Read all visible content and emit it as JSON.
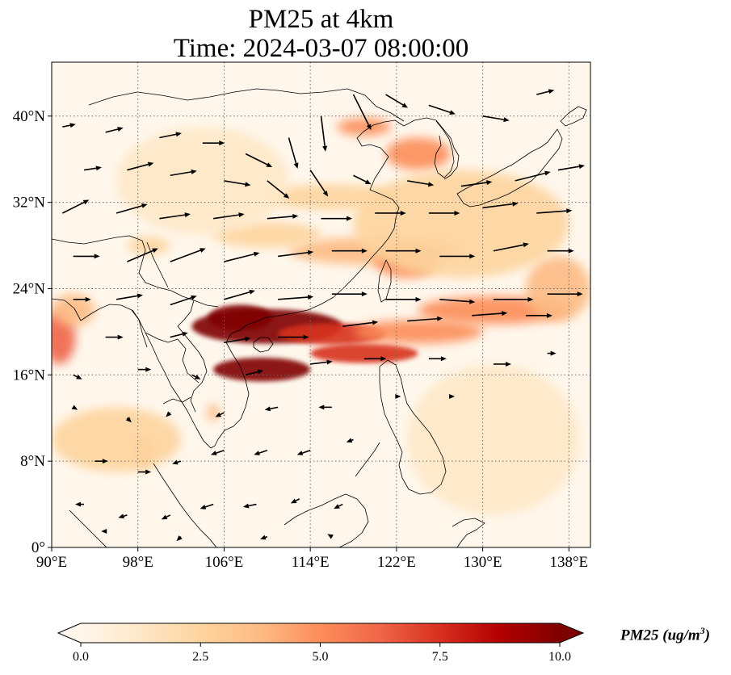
{
  "title": {
    "line1": "PM25 at 4km",
    "line2": "Time: 2024-03-07 08:00:00"
  },
  "map": {
    "extent": {
      "lon": [
        90,
        140
      ],
      "lat": [
        0,
        45
      ]
    },
    "lat_ticks": [
      {
        "value": 0,
        "label": "0°"
      },
      {
        "value": 8,
        "label": "8°N"
      },
      {
        "value": 16,
        "label": "16°N"
      },
      {
        "value": 24,
        "label": "24°N"
      },
      {
        "value": 32,
        "label": "32°N"
      },
      {
        "value": 40,
        "label": "40°N"
      }
    ],
    "lon_ticks": [
      {
        "value": 90,
        "label": "90°E"
      },
      {
        "value": 98,
        "label": "98°E"
      },
      {
        "value": 106,
        "label": "106°E"
      },
      {
        "value": 114,
        "label": "114°E"
      },
      {
        "value": 122,
        "label": "122°E"
      },
      {
        "value": 130,
        "label": "130°E"
      },
      {
        "value": 138,
        "label": "138°E"
      }
    ],
    "gridlines": true,
    "colormap": "OrRd",
    "field_blobs": [
      {
        "lon": 110,
        "lat": 20.5,
        "rlon": 7,
        "rlat": 1.6,
        "level": 10
      },
      {
        "lon": 107.5,
        "lat": 21.3,
        "rlon": 3,
        "rlat": 1.2,
        "level": 10
      },
      {
        "lon": 109.5,
        "lat": 16.5,
        "rlon": 4.5,
        "rlat": 1.1,
        "level": 9.5
      },
      {
        "lon": 116,
        "lat": 19.8,
        "rlon": 5,
        "rlat": 1,
        "level": 7.5
      },
      {
        "lon": 119,
        "lat": 18,
        "rlon": 5,
        "rlat": 0.9,
        "level": 7
      },
      {
        "lon": 124,
        "lat": 20,
        "rlon": 6,
        "rlat": 1.1,
        "level": 5.5
      },
      {
        "lon": 131,
        "lat": 22,
        "rlon": 7,
        "rlat": 1.3,
        "level": 4.5
      },
      {
        "lon": 90.7,
        "lat": 19.5,
        "rlon": 1.5,
        "rlat": 2.5,
        "level": 6
      },
      {
        "lon": 92,
        "lat": 22,
        "rlon": 2,
        "rlat": 1.5,
        "level": 4
      },
      {
        "lon": 120,
        "lat": 27.5,
        "rlon": 8,
        "rlat": 1.3,
        "level": 4
      },
      {
        "lon": 110,
        "lat": 29,
        "rlon": 5,
        "rlat": 1.2,
        "level": 3
      },
      {
        "lon": 123,
        "lat": 26.5,
        "rlon": 3,
        "rlat": 1.5,
        "level": 4.5
      },
      {
        "lon": 116,
        "lat": 32.5,
        "rlon": 6,
        "rlat": 1.2,
        "level": 3
      },
      {
        "lon": 124,
        "lat": 36.5,
        "rlon": 3,
        "rlat": 1.5,
        "level": 5
      },
      {
        "lon": 119,
        "lat": 39,
        "rlon": 2.5,
        "rlat": 0.8,
        "level": 4.5
      },
      {
        "lon": 99,
        "lat": 28,
        "rlon": 2,
        "rlat": 0.8,
        "level": 3
      },
      {
        "lon": 98.5,
        "lat": 8.8,
        "rlon": 0.8,
        "rlat": 1.5,
        "level": 4
      },
      {
        "lon": 105,
        "lat": 12.5,
        "rlon": 0.6,
        "rlat": 0.8,
        "level": 3.5
      },
      {
        "lon": 96,
        "lat": 10,
        "rlon": 6,
        "rlat": 3,
        "level": 2
      },
      {
        "lon": 131,
        "lat": 10,
        "rlon": 8,
        "rlat": 7,
        "level": 1.8
      },
      {
        "lon": 137,
        "lat": 24,
        "rlon": 3,
        "rlat": 3,
        "level": 3.5
      },
      {
        "lon": 104,
        "lat": 34,
        "rlon": 8,
        "rlat": 5,
        "level": 1.2
      },
      {
        "lon": 128,
        "lat": 30,
        "rlon": 10,
        "rlat": 5,
        "level": 2.2
      }
    ],
    "wind_arrows": [
      {
        "lon": 91,
        "lat": 39,
        "u": 1.5,
        "v": 0.3
      },
      {
        "lon": 95,
        "lat": 38.5,
        "u": 2,
        "v": 0.5
      },
      {
        "lon": 100,
        "lat": 38,
        "u": 2.5,
        "v": 0.5
      },
      {
        "lon": 104,
        "lat": 37.5,
        "u": 2.5,
        "v": 0
      },
      {
        "lon": 108,
        "lat": 36.5,
        "u": 3,
        "v": -1.5
      },
      {
        "lon": 112,
        "lat": 38,
        "u": 1,
        "v": -3.5
      },
      {
        "lon": 115,
        "lat": 40,
        "u": 0.5,
        "v": -4
      },
      {
        "lon": 118,
        "lat": 42,
        "u": 2,
        "v": -4
      },
      {
        "lon": 121,
        "lat": 42,
        "u": 2.5,
        "v": -1.5
      },
      {
        "lon": 125,
        "lat": 41,
        "u": 3,
        "v": -1
      },
      {
        "lon": 130,
        "lat": 40,
        "u": 3,
        "v": -0.5
      },
      {
        "lon": 135,
        "lat": 42,
        "u": 2,
        "v": 0.5
      },
      {
        "lon": 93,
        "lat": 35,
        "u": 2,
        "v": 0.3
      },
      {
        "lon": 97,
        "lat": 35,
        "u": 3,
        "v": 0.8
      },
      {
        "lon": 101,
        "lat": 34.5,
        "u": 3,
        "v": 0.5
      },
      {
        "lon": 106,
        "lat": 34,
        "u": 3,
        "v": -0.5
      },
      {
        "lon": 110,
        "lat": 34,
        "u": 2.5,
        "v": -2
      },
      {
        "lon": 114,
        "lat": 35,
        "u": 2,
        "v": -3
      },
      {
        "lon": 118,
        "lat": 34.5,
        "u": 2,
        "v": -1
      },
      {
        "lon": 123,
        "lat": 34,
        "u": 3,
        "v": -0.5
      },
      {
        "lon": 128,
        "lat": 33.5,
        "u": 3.5,
        "v": 0.5
      },
      {
        "lon": 133,
        "lat": 34,
        "u": 4,
        "v": 1
      },
      {
        "lon": 137,
        "lat": 35,
        "u": 3,
        "v": 0.5
      },
      {
        "lon": 91,
        "lat": 31,
        "u": 3,
        "v": 1.5
      },
      {
        "lon": 96,
        "lat": 31,
        "u": 3.5,
        "v": 1
      },
      {
        "lon": 100,
        "lat": 30.5,
        "u": 3.5,
        "v": 0.5
      },
      {
        "lon": 105,
        "lat": 30.5,
        "u": 3.5,
        "v": 0.5
      },
      {
        "lon": 110,
        "lat": 30.5,
        "u": 3.5,
        "v": 0.3
      },
      {
        "lon": 115,
        "lat": 30.5,
        "u": 3.5,
        "v": 0
      },
      {
        "lon": 120,
        "lat": 31,
        "u": 3.5,
        "v": 0
      },
      {
        "lon": 125,
        "lat": 31,
        "u": 3.5,
        "v": 0
      },
      {
        "lon": 130,
        "lat": 31.5,
        "u": 4,
        "v": 0.5
      },
      {
        "lon": 135,
        "lat": 31,
        "u": 4,
        "v": 0.3
      },
      {
        "lon": 92,
        "lat": 27,
        "u": 3,
        "v": 0
      },
      {
        "lon": 97,
        "lat": 26.5,
        "u": 3.5,
        "v": 1.5
      },
      {
        "lon": 101,
        "lat": 26.5,
        "u": 4,
        "v": 1.5
      },
      {
        "lon": 106,
        "lat": 26.5,
        "u": 4,
        "v": 1
      },
      {
        "lon": 111,
        "lat": 27,
        "u": 4,
        "v": 0.5
      },
      {
        "lon": 116,
        "lat": 27.5,
        "u": 4,
        "v": 0
      },
      {
        "lon": 121,
        "lat": 27.5,
        "u": 4,
        "v": 0
      },
      {
        "lon": 126,
        "lat": 27,
        "u": 4,
        "v": 0
      },
      {
        "lon": 131,
        "lat": 27.5,
        "u": 4,
        "v": 0.8
      },
      {
        "lon": 136,
        "lat": 27.5,
        "u": 3,
        "v": 0
      },
      {
        "lon": 92,
        "lat": 23,
        "u": 2,
        "v": 0
      },
      {
        "lon": 96,
        "lat": 23,
        "u": 3,
        "v": 0.5
      },
      {
        "lon": 101,
        "lat": 22.5,
        "u": 3,
        "v": 1
      },
      {
        "lon": 106,
        "lat": 23,
        "u": 3.5,
        "v": 1
      },
      {
        "lon": 111,
        "lat": 23,
        "u": 4,
        "v": 0.3
      },
      {
        "lon": 116,
        "lat": 23.5,
        "u": 4,
        "v": 0
      },
      {
        "lon": 121,
        "lat": 23,
        "u": 4,
        "v": 0
      },
      {
        "lon": 126,
        "lat": 23,
        "u": 4,
        "v": -0.3
      },
      {
        "lon": 131,
        "lat": 23,
        "u": 4.5,
        "v": 0
      },
      {
        "lon": 136,
        "lat": 23.5,
        "u": 4,
        "v": 0
      },
      {
        "lon": 95,
        "lat": 19.5,
        "u": 2,
        "v": 0
      },
      {
        "lon": 101,
        "lat": 19.5,
        "u": 2,
        "v": 0.5
      },
      {
        "lon": 106,
        "lat": 19,
        "u": 3,
        "v": 0.5
      },
      {
        "lon": 111,
        "lat": 19.5,
        "u": 3.5,
        "v": 0
      },
      {
        "lon": 117,
        "lat": 20.5,
        "u": 4,
        "v": 0.5
      },
      {
        "lon": 123,
        "lat": 21,
        "u": 4,
        "v": 0.3
      },
      {
        "lon": 129,
        "lat": 21.5,
        "u": 4,
        "v": 0.3
      },
      {
        "lon": 134,
        "lat": 21.5,
        "u": 3,
        "v": 0
      },
      {
        "lon": 98,
        "lat": 16.5,
        "u": 1.5,
        "v": 0
      },
      {
        "lon": 103,
        "lat": 16,
        "u": 1,
        "v": -0.5
      },
      {
        "lon": 108,
        "lat": 16,
        "u": 2,
        "v": 0.5
      },
      {
        "lon": 114,
        "lat": 17,
        "u": 2.5,
        "v": 0.3
      },
      {
        "lon": 119,
        "lat": 17.5,
        "u": 2.5,
        "v": 0
      },
      {
        "lon": 125,
        "lat": 17.5,
        "u": 2,
        "v": 0
      },
      {
        "lon": 131,
        "lat": 17,
        "u": 2,
        "v": 0
      },
      {
        "lon": 136,
        "lat": 18,
        "u": 1,
        "v": 0
      },
      {
        "lon": 92,
        "lat": 16,
        "u": 1,
        "v": -0.5
      },
      {
        "lon": 92,
        "lat": 13,
        "u": 0.5,
        "v": -0.3
      },
      {
        "lon": 97,
        "lat": 12,
        "u": 0.5,
        "v": -0.5
      },
      {
        "lon": 101,
        "lat": 12.5,
        "u": -0.5,
        "v": -0.5
      },
      {
        "lon": 106,
        "lat": 12.5,
        "u": -1,
        "v": -0.5
      },
      {
        "lon": 111,
        "lat": 13,
        "u": -1.5,
        "v": -0.3
      },
      {
        "lon": 116,
        "lat": 13,
        "u": -1.5,
        "v": 0
      },
      {
        "lon": 122,
        "lat": 14,
        "u": 0.5,
        "v": 0
      },
      {
        "lon": 127,
        "lat": 14,
        "u": 0.5,
        "v": 0
      },
      {
        "lon": 94,
        "lat": 8,
        "u": 1.5,
        "v": 0
      },
      {
        "lon": 98,
        "lat": 7,
        "u": 1.5,
        "v": 0
      },
      {
        "lon": 102,
        "lat": 8,
        "u": -1,
        "v": -0.3
      },
      {
        "lon": 106,
        "lat": 9,
        "u": -1.5,
        "v": -0.5
      },
      {
        "lon": 110,
        "lat": 9,
        "u": -1.5,
        "v": -0.5
      },
      {
        "lon": 114,
        "lat": 9,
        "u": -1.5,
        "v": -0.5
      },
      {
        "lon": 118,
        "lat": 10,
        "u": -0.8,
        "v": -0.3
      },
      {
        "lon": 93,
        "lat": 4,
        "u": -1,
        "v": 0
      },
      {
        "lon": 97,
        "lat": 3,
        "u": -1,
        "v": -0.3
      },
      {
        "lon": 101,
        "lat": 3,
        "u": -1,
        "v": -0.5
      },
      {
        "lon": 105,
        "lat": 4,
        "u": -1.5,
        "v": -0.5
      },
      {
        "lon": 109,
        "lat": 4,
        "u": -1.5,
        "v": -0.3
      },
      {
        "lon": 113,
        "lat": 4.5,
        "u": -1,
        "v": -0.5
      },
      {
        "lon": 117,
        "lat": 4,
        "u": -1,
        "v": -0.5
      },
      {
        "lon": 95,
        "lat": 1.5,
        "u": -0.5,
        "v": 0
      },
      {
        "lon": 102,
        "lat": 1,
        "u": -0.5,
        "v": -0.5
      },
      {
        "lon": 110,
        "lat": 1,
        "u": -0.8,
        "v": -0.3
      },
      {
        "lon": 116,
        "lat": 1,
        "u": -0.5,
        "v": 0.3
      }
    ]
  },
  "colorbar": {
    "ticks": [
      {
        "value": 0,
        "label": "0.0"
      },
      {
        "value": 2.5,
        "label": "2.5"
      },
      {
        "value": 5,
        "label": "5.0"
      },
      {
        "value": 7.5,
        "label": "7.5"
      },
      {
        "value": 10,
        "label": "10.0"
      }
    ],
    "range": [
      0,
      10
    ],
    "extend": "both",
    "label_main": "PM25 (ug/m",
    "label_sup": "3",
    "label_end": ")"
  },
  "colors": {
    "ramp": [
      "#fff7ec",
      "#fee8c8",
      "#fdd49e",
      "#fdbb84",
      "#fc8d59",
      "#ef6548",
      "#d7301f",
      "#b30000",
      "#7f0000"
    ],
    "land_outline": "#000000",
    "grid": "#6b6b6b",
    "arrow": "#000000"
  }
}
